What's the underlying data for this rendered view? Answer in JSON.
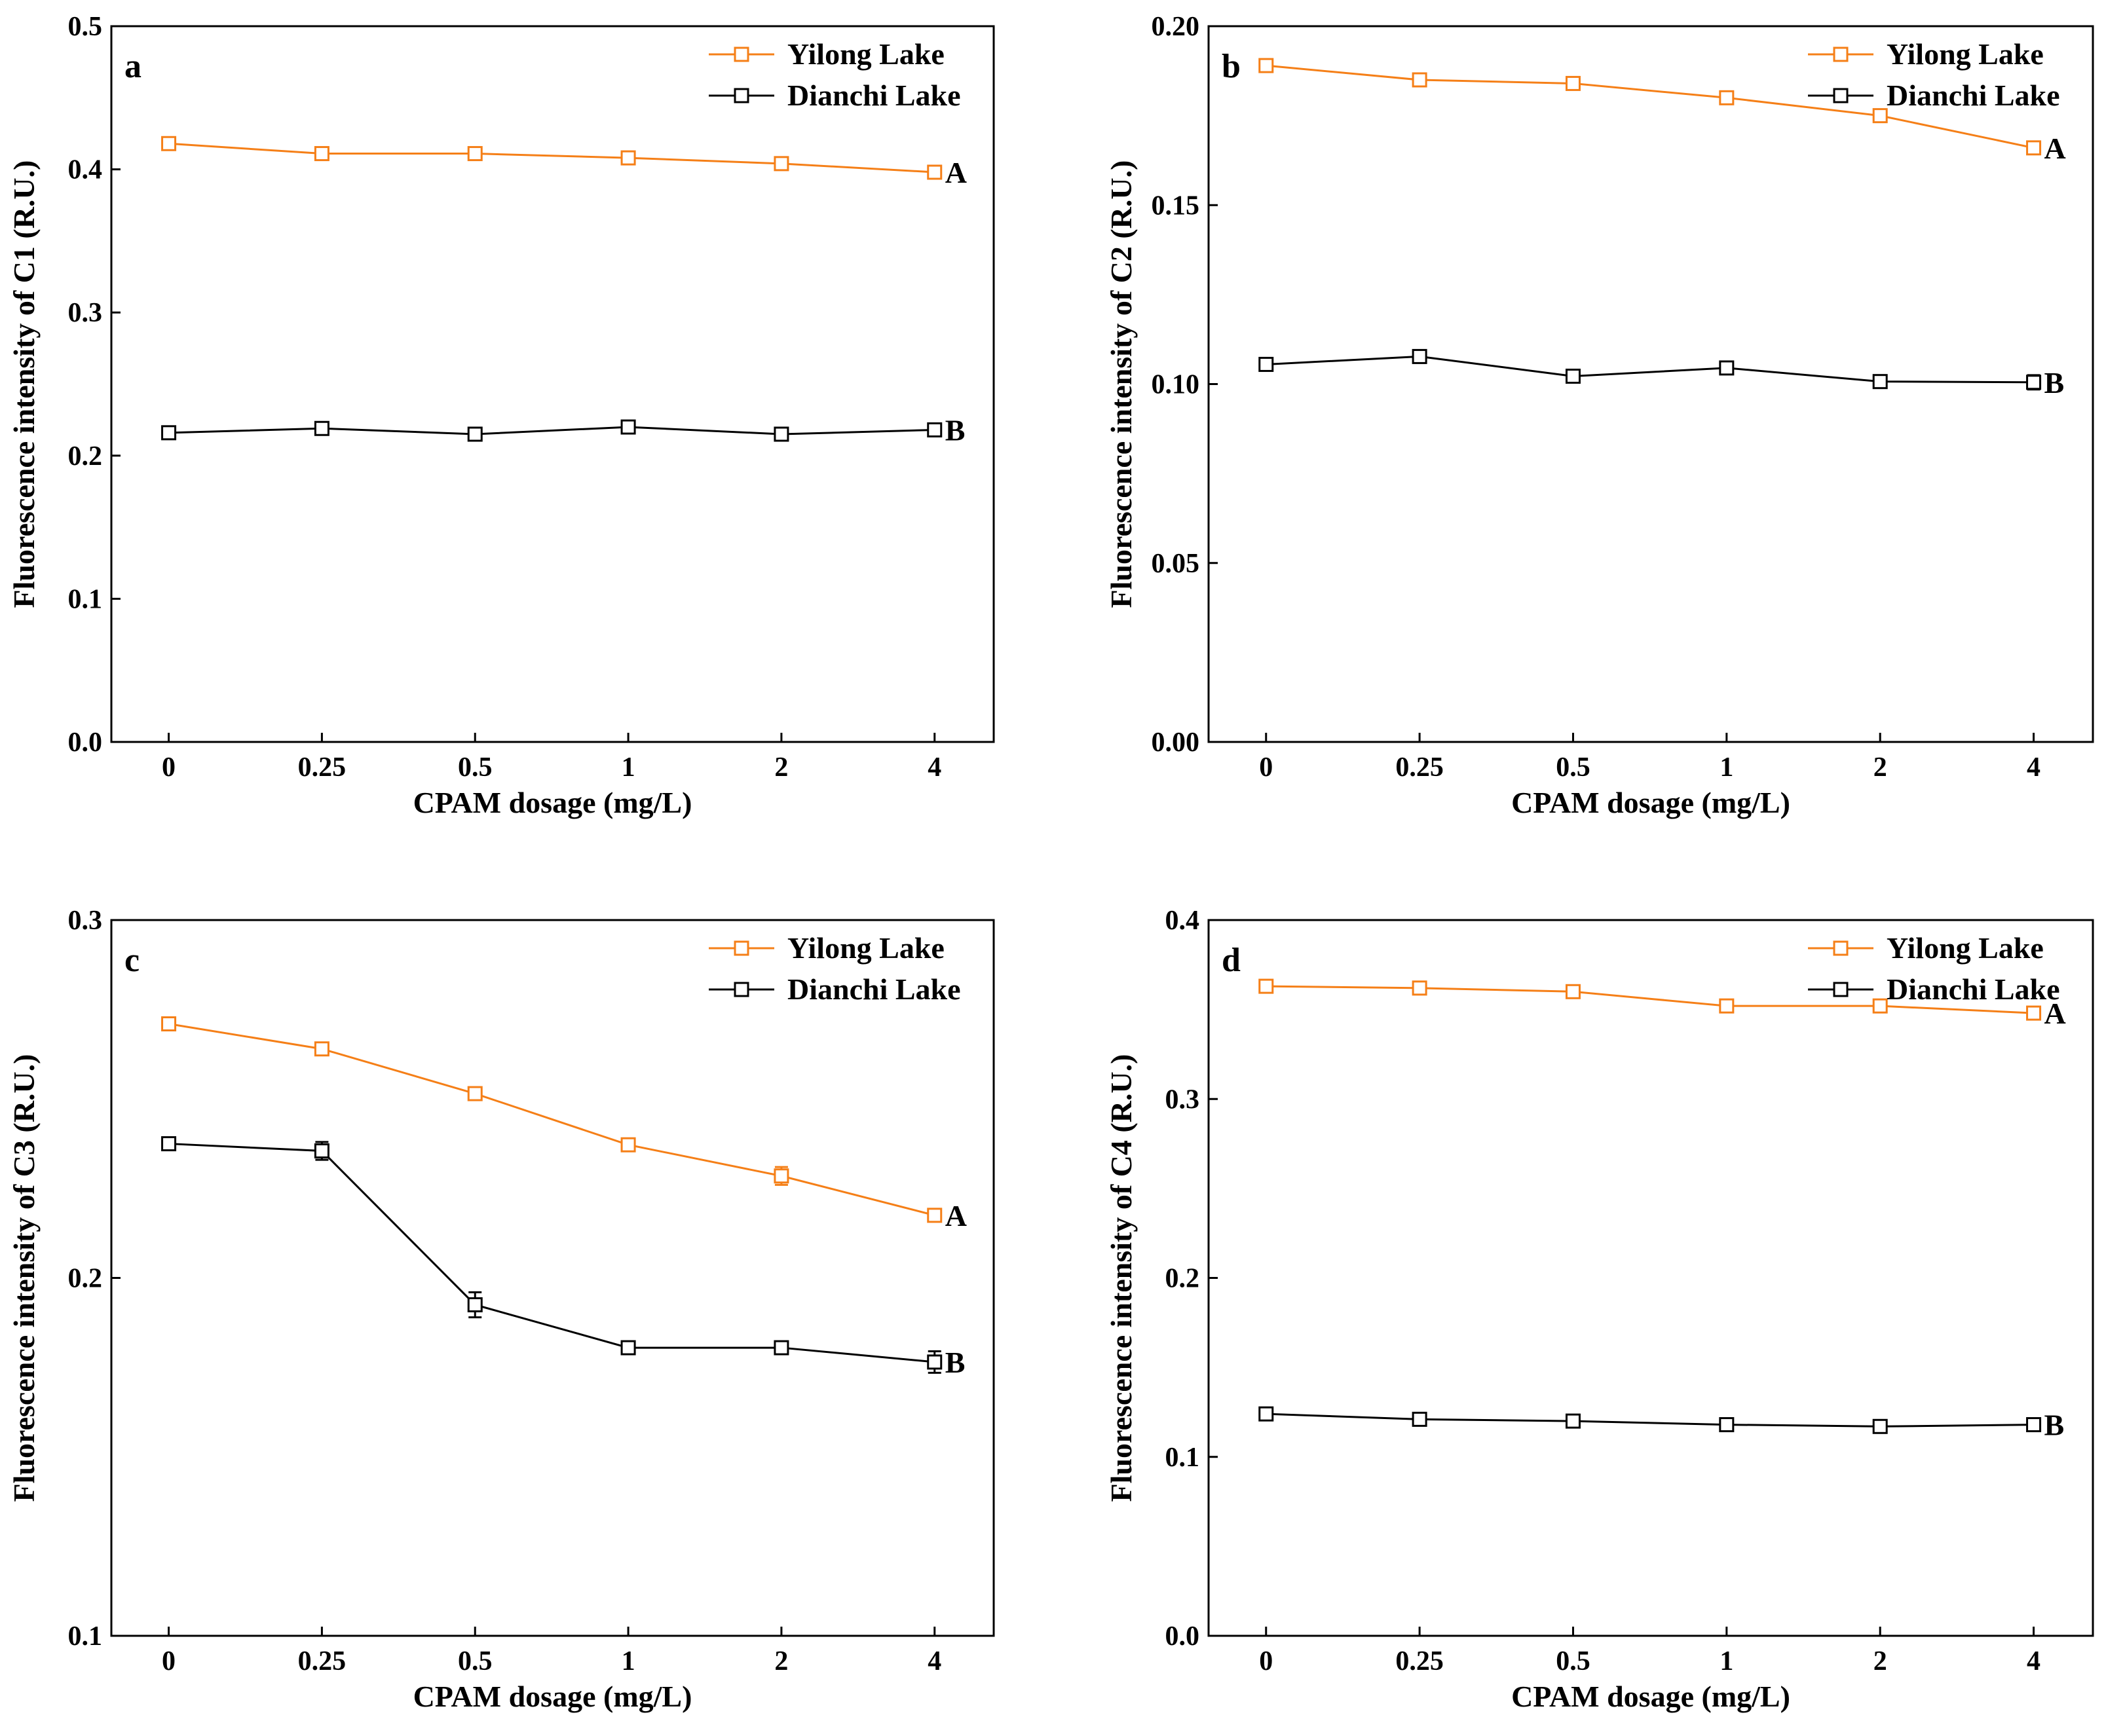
{
  "colors": {
    "yilong": "#F57F17",
    "dianchi": "#000000",
    "axis": "#000000"
  },
  "chart_data": [
    {
      "type": "line",
      "panel": "a",
      "xlabel": "CPAM dosage (mg/L)",
      "ylabel": "Fluorescence intensity of C1 (R.U.)",
      "categories": [
        "0",
        "0.25",
        "0.5",
        "1",
        "2",
        "4"
      ],
      "ylim": [
        0,
        0.5
      ],
      "yticks": [
        "0.0",
        "0.1",
        "0.2",
        "0.3",
        "0.4",
        "0.5"
      ],
      "legend_position": "top-right",
      "series": [
        {
          "name": "Yilong Lake",
          "color_key": "yilong",
          "tag": "A",
          "values": [
            0.418,
            0.411,
            0.411,
            0.408,
            0.404,
            0.398
          ],
          "errors": [
            0.003,
            0.003,
            0.003,
            0.003,
            0.003,
            0.003
          ]
        },
        {
          "name": "Dianchi Lake",
          "color_key": "dianchi",
          "tag": "B",
          "values": [
            0.216,
            0.219,
            0.215,
            0.22,
            0.215,
            0.218
          ],
          "errors": [
            0.003,
            0.003,
            0.003,
            0.003,
            0.003,
            0.003
          ]
        }
      ]
    },
    {
      "type": "line",
      "panel": "b",
      "xlabel": "CPAM dosage (mg/L)",
      "ylabel": "Fluorescence intensity of C2 (R.U.)",
      "categories": [
        "0",
        "0.25",
        "0.5",
        "1",
        "2",
        "4"
      ],
      "ylim": [
        0,
        0.2
      ],
      "yticks": [
        "0.00",
        "0.05",
        "0.10",
        "0.15",
        "0.20"
      ],
      "legend_position": "top-right",
      "series": [
        {
          "name": "Yilong Lake",
          "color_key": "yilong",
          "tag": "A",
          "values": [
            0.189,
            0.185,
            0.184,
            0.18,
            0.175,
            0.166
          ],
          "errors": [
            0.0015,
            0.0015,
            0.0015,
            0.0015,
            0.0015,
            0.0015
          ]
        },
        {
          "name": "Dianchi Lake",
          "color_key": "dianchi",
          "tag": "B",
          "values": [
            0.1055,
            0.1077,
            0.1022,
            0.1045,
            0.1007,
            0.1005
          ],
          "errors": [
            0.0015,
            0.0015,
            0.0015,
            0.0015,
            0.0015,
            0.002
          ]
        }
      ]
    },
    {
      "type": "line",
      "panel": "c",
      "xlabel": "CPAM dosage (mg/L)",
      "ylabel": "Fluorescence intensity of C3 (R.U.)",
      "categories": [
        "0",
        "0.25",
        "0.5",
        "1",
        "2",
        "4"
      ],
      "ylim": [
        0.1,
        0.3
      ],
      "yticks": [
        "0.1",
        "0.2",
        "0.3"
      ],
      "legend_position": "top-right",
      "series": [
        {
          "name": "Yilong Lake",
          "color_key": "yilong",
          "tag": "A",
          "values": [
            0.271,
            0.264,
            0.2515,
            0.2372,
            0.2285,
            0.2175
          ],
          "errors": [
            0.0015,
            0.0015,
            0.0015,
            0.0015,
            0.0025,
            0.0015
          ]
        },
        {
          "name": "Dianchi Lake",
          "color_key": "dianchi",
          "tag": "B",
          "values": [
            0.2375,
            0.2355,
            0.1925,
            0.1805,
            0.1805,
            0.1765
          ],
          "errors": [
            0.0015,
            0.0025,
            0.0035,
            0.0015,
            0.0015,
            0.003
          ]
        }
      ]
    },
    {
      "type": "line",
      "panel": "d",
      "xlabel": "CPAM dosage (mg/L)",
      "ylabel": "Fluorescence intensity of C4 (R.U.)",
      "categories": [
        "0",
        "0.25",
        "0.5",
        "1",
        "2",
        "4"
      ],
      "ylim": [
        0,
        0.4
      ],
      "yticks": [
        "0.0",
        "0.1",
        "0.2",
        "0.3",
        "0.4"
      ],
      "legend_position": "top-right",
      "series": [
        {
          "name": "Yilong Lake",
          "color_key": "yilong",
          "tag": "A",
          "values": [
            0.363,
            0.362,
            0.36,
            0.352,
            0.352,
            0.348
          ],
          "errors": [
            0.002,
            0.002,
            0.002,
            0.002,
            0.002,
            0.002
          ]
        },
        {
          "name": "Dianchi Lake",
          "color_key": "dianchi",
          "tag": "B",
          "values": [
            0.124,
            0.121,
            0.12,
            0.118,
            0.117,
            0.118
          ],
          "errors": [
            0.002,
            0.002,
            0.002,
            0.002,
            0.002,
            0.002
          ]
        }
      ]
    }
  ]
}
